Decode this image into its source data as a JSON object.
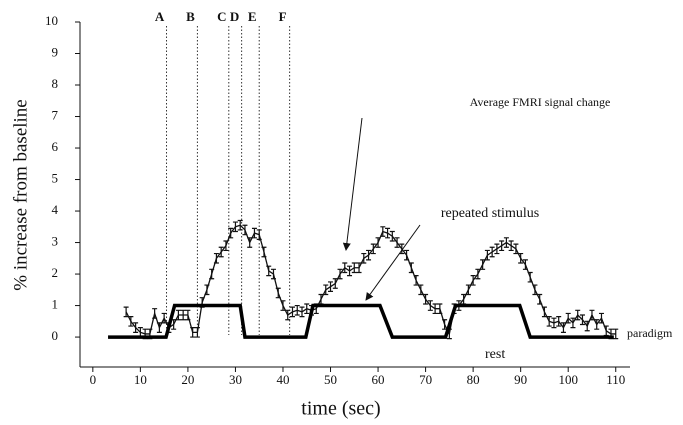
{
  "chart_data": {
    "type": "line",
    "xlabel": "time (sec)",
    "ylabel": "% increase from baseline",
    "xlim": [
      -2.7,
      113
    ],
    "ylim": [
      -0.95,
      10
    ],
    "xticks": [
      0,
      10,
      20,
      30,
      40,
      50,
      60,
      70,
      80,
      90,
      100,
      110
    ],
    "yticks": [
      0,
      1,
      2,
      3,
      4,
      5,
      6,
      7,
      8,
      9,
      10
    ],
    "markers": [
      {
        "label": "A",
        "x": 15.5
      },
      {
        "label": "B",
        "x": 22
      },
      {
        "label": "C",
        "x": 28.6
      },
      {
        "label": "D",
        "x": 31.3
      },
      {
        "label": "E",
        "x": 35
      },
      {
        "label": "F",
        "x": 41.4
      }
    ],
    "annotations": [
      "Average FMRI signal change",
      "repeated stimulus",
      "paradigm",
      "rest"
    ],
    "series": [
      {
        "name": "Average FMRI signal change",
        "color": "#111111",
        "error": 0.15,
        "x": [
          7,
          8,
          9,
          10,
          11,
          12,
          13,
          14,
          15,
          16,
          17,
          18,
          19,
          20,
          21,
          22,
          23,
          24,
          25,
          26,
          27,
          28,
          29,
          30,
          31,
          32,
          33,
          34,
          35,
          36,
          37,
          38,
          39,
          40,
          41,
          42,
          43,
          44,
          45,
          46,
          47,
          48,
          49,
          50,
          51,
          52,
          53,
          54,
          55,
          56,
          57,
          58,
          59,
          60,
          61,
          62,
          63,
          64,
          65,
          66,
          67,
          68,
          69,
          70,
          71,
          72,
          73,
          74,
          75,
          76,
          77,
          78,
          79,
          80,
          81,
          82,
          83,
          84,
          85,
          86,
          87,
          88,
          89,
          90,
          91,
          92,
          93,
          94,
          95,
          96,
          97,
          98,
          99,
          100,
          101,
          102,
          103,
          104,
          105,
          106,
          107,
          108,
          109,
          110
        ],
        "values": [
          0.8,
          0.5,
          0.3,
          0.15,
          0.1,
          0.1,
          0.75,
          0.3,
          0.6,
          0.3,
          0.4,
          0.7,
          0.7,
          0.7,
          0.15,
          0.15,
          1.1,
          1.5,
          2.0,
          2.5,
          2.7,
          2.9,
          3.3,
          3.5,
          3.55,
          3.4,
          3.0,
          3.3,
          3.25,
          2.7,
          2.1,
          2.0,
          1.4,
          1.0,
          0.7,
          0.8,
          0.85,
          0.8,
          0.9,
          0.85,
          0.9,
          1.2,
          1.5,
          1.6,
          1.7,
          2.0,
          2.2,
          2.1,
          2.2,
          2.2,
          2.5,
          2.6,
          2.8,
          3.0,
          3.35,
          3.3,
          3.2,
          3.0,
          2.8,
          2.6,
          2.2,
          1.8,
          1.5,
          1.2,
          1.0,
          0.9,
          0.9,
          0.4,
          0.1,
          0.9,
          1.0,
          1.2,
          1.5,
          1.8,
          2.0,
          2.3,
          2.6,
          2.7,
          2.8,
          2.9,
          3.0,
          2.9,
          2.8,
          2.5,
          2.3,
          1.9,
          1.5,
          1.2,
          0.8,
          0.5,
          0.45,
          0.5,
          0.3,
          0.6,
          0.45,
          0.7,
          0.55,
          0.35,
          0.7,
          0.4,
          0.6,
          0.2,
          0.1,
          0.1
        ]
      },
      {
        "name": "paradigm",
        "color": "#000000",
        "x": [
          3.2,
          15.4,
          17.2,
          31,
          32,
          44.8,
          46.3,
          60.4,
          63,
          74.2,
          76.3,
          89.8,
          92,
          109.6
        ],
        "values": [
          0,
          0,
          1,
          1,
          0,
          0,
          1,
          1,
          0,
          0,
          1,
          1,
          0,
          0
        ]
      }
    ]
  }
}
